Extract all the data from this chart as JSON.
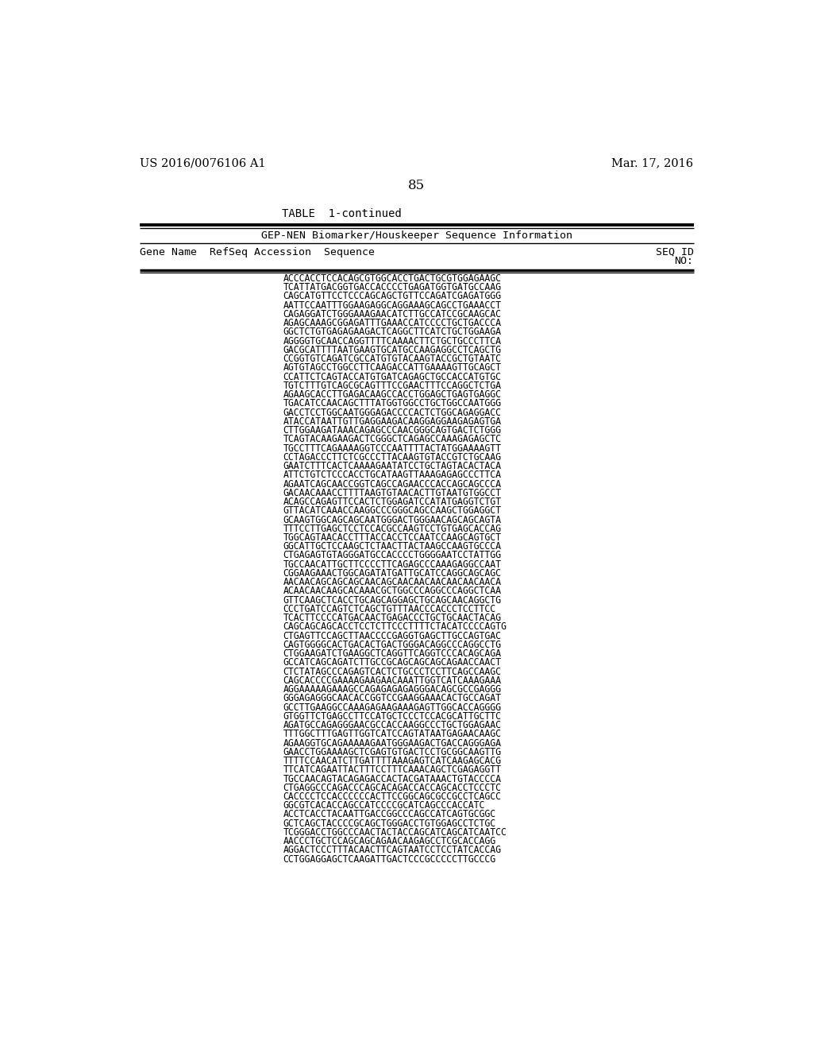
{
  "page_left": "US 2016/0076106 A1",
  "page_right": "Mar. 17, 2016",
  "page_number": "85",
  "table_title": "TABLE  1-continued",
  "table_subtitle": "GEP-NEN Biomarker/Houskeeper Sequence Information",
  "col_header_left": "Gene Name  RefSeq Accession  Sequence",
  "col_header_right_line1": "SEQ ID",
  "col_header_right_line2": "NO:",
  "background_color": "#ffffff",
  "text_color": "#000000",
  "sequence_lines": [
    "ACCCACCTCCACAGCGTGGCACCTGACTGCGTGGAGAAGC",
    "TCATTATGACGGTGACCACCCCTGAGATGGTGATGCCAAG",
    "CAGCATGTTCCTCCCAGCAGCTGTTCCAGATCGAGATGGG",
    "AATTCCAATTTGGAAGAGGCAGGAAAGCAGCCTGAAACCT",
    "CAGAGGATCTGGGAAAGAACATCTTGCCATCCGCAAGCAC",
    "AGAGCAAAGCGGAGATTTGAAACCATCCCCTGCTGACCCA",
    "GGCTCTGTGAGAGAAGACTCAGGCTTCATCTGCTGGAAGA",
    "AGGGGTGCAACCAGGTTTTCAAAACTTCTGCTGCCCTTCA",
    "GACGCATTTTAATGAAGTGCATGCCAAGAGGCCTCAGCTG",
    "CCGGTGTCAGATCGCCATGTGTACAAGTACCGCTGTAATC",
    "AGTGTAGCCTGGCCTTCAAGACCATTGAAAAGTTGCAGCT",
    "CCATTCTCAGTACCATGTGATCAGAGCTGCCACCATGTGC",
    "TGTCTTTGTCAGCGCAGTTTCCGAACTTTCCAGGCTCTGA",
    "AGAAGCACCTTGAGACAAGCCACCTGGAGCTGAGTGAGGC",
    "TGACATCCAACAGCTTTATGGTGGCCTGCTGGCCAATGGG",
    "GACCTCCTGGCAATGGGAGACCCCACTCTGGCAGAGGACC",
    "ATACCATAATTGTTGAGGAAGACAAGGAGGAAGAGAGTGA",
    "CTTGGAAGATAAACAGAGCCCAACGGGCAGTGACTCTGGG",
    "TCAGTACAAGAAGACTCGGGCTCAGAGCCAAAGAGAGCTC",
    "TGCCTTTCAGAAAAGGTCCCAATTTTACTATGGAAAAGTT",
    "CCTAGACCCTTCTCGCCCTTACAAGTGTACCGTCTGCAAG",
    "GAATCTTTCACTCAAAAGAATATCCTGCTAGTACACTACA",
    "ATTCTGTCTCCCACCTGCATAAGTTAAAGAGAGCCCTTCA",
    "AGAATCAGCAACCGGTCAGCCAGAACCCACCAGCAGCCCA",
    "GACAACAAACCTTTTAAGTGTAACACTTGTAATGTGGCCT",
    "ACAGCCAGAGTTCCACTCTGGAGATCCATATGAGGTCTGT",
    "GTTACATCAAACCAAGGCCCGGGCAGCCAAGCTGGAGGCT",
    "GCAAGTGGCAGCAGCAATGGGACTGGGAACAGCAGCAGTA",
    "TTTCCTTGAGCTCCTCCACGCCAAGTCCTGTGAGCACCAG",
    "TGGCAGTAACACCTTTACCACCTCCAATCCAAGCAGTGCT",
    "GGCATTGCTCCAAGCTCTAACTTACTAAGCCAAGTGCCCA",
    "CTGAGAGTGTAGGGATGCCACCCCTGGGGAATCCTATTGG",
    "TGCCAACATTGCTTCCCCTTCAGAGCCCAAAGAGGCCAAT",
    "CGGAAGAAACTGGCAGATATGATTGCATCCAGGCAGCAGC",
    "AACAACAGCAGCAGCAACAGCAACAACAACAACAACAACA",
    "ACAACAACAAGCACAAACGCTGGCCCAGGCCCAGGCTCAA",
    "GTTCAAGCTCACCTGCAGCAGGAGCTGCAGCAACAGGCTG",
    "CCCTGATCCAGTCTCAGCTGTTTAACCCACCCTCCTTCC",
    "TCACTTCCCCATGACAACTGAGACCCTGCTGCAACTACAG",
    "CAGCAGCAGCACCTCCTCTTCCCTTTTCTACATCCCCAGTG",
    "CTGAGTTCCAGCTTAACCCCGAGGTGAGCTTGCCAGTGAC",
    "CAGTGGGGCACTGACACTGACTGGGACAGGCCCAGGCCTG",
    "CTGGAAGATCTGAAGGCTCAGGTTCAGGTCCCACAGCAGA",
    "GCCATCAGCAGATCTTGCCGCAGCAGCAGCAGAACCAACT",
    "CTCTATAGCCCAGAGTCACTCTGCCCTCCTTCAGCCAAGC",
    "CAGCACCCCGAAAAGAAGAACAAATTGGTCATCAAAGAAA",
    "AGGAAAAAGAAAGCCAGAGAGAGAGGGACAGCGCCGAGGG",
    "GGGAGAGGGCAACACCGGTCCGAAGGAAACACTGCCAGAT",
    "GCCTTGAAGGCCAAAGAGAAGAAAGAGTTGGCACCAGGGG",
    "GTGGTTCTGAGCCTTCCATGCTCCCTCCACGCATTGCTTC",
    "AGATGCCAGAGGGAACGCCACCAAGGCCCTGCTGGAGAAC",
    "TTTGGCTTTGAGTTGGTCATCCAGTATAATGAGAACAAGC",
    "AGAAGGTGCAGAAAAAGAATGGGAAGACTGACCAGGGAGA",
    "GAACCTGGAAAAGCTCGAGTGTGACTCCTGCGGCAAGTTG",
    "TTTTCCAACATCTTGATTTTAAAGAGTCATCAAGAGCACG",
    "TTCATCAGAATTACTTTCCTTTCAAACAGCTCGAGAGGTT",
    "TGCCAACAGTACAGAGACCACTACGATAAACTGTACCCCA",
    "CTGAGGCCCAGACCCAGCACAGACCACCAGCACCTCCCTC",
    "CACCCCTCCACCCCCCACTTCCGGCAGCGCCGCCTCAGCC",
    "GGCGTCACACCAGCCATCCCCGCATCAGCCCACCATC",
    "ACCTCACCTACAATTGACCGGCCCAGCCATCAGTGCGGC",
    "GCTCAGCTACCCCGCAGCTGGGACCTGTGGAGCCTCTGC",
    "TCGGGACCTGGCCCAACTACTACCAGCATCAGCATCAATCC",
    "AACCCTGCTCCAGCAGCAGAACAAGAGCCTCGCACCAGG",
    "AGGACTCCCTTTACAACTTCAGTAATCCTCCTATCACCAG",
    "CCTGGAGGAGCTCAAGATTGACTCCCGCCCCCTTGCCCG"
  ]
}
